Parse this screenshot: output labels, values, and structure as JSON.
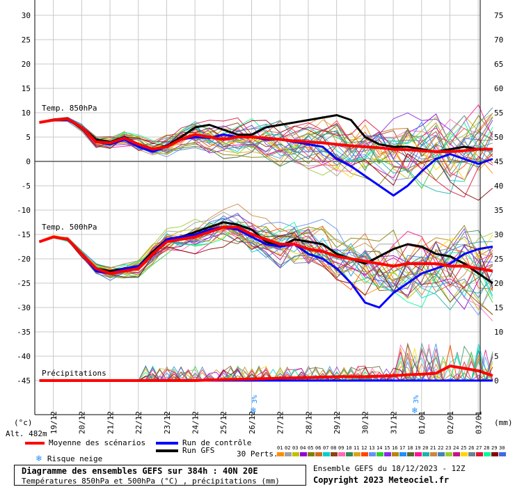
{
  "left_axis": {
    "ticks": [
      "30",
      "25",
      "20",
      "15",
      "10",
      "5",
      "0",
      "-5",
      "-10",
      "-15",
      "-20",
      "-25",
      "-30",
      "-35",
      "-40",
      "-45"
    ],
    "unit": "(°c)"
  },
  "right_axis": {
    "ticks": [
      "75",
      "70",
      "65",
      "60",
      "55",
      "50",
      "45",
      "40",
      "35",
      "30",
      "25",
      "20",
      "15",
      "10",
      "5",
      "0"
    ],
    "unit": "(mm)"
  },
  "altitude": "Alt. 482m",
  "x_dates": [
    "19/12",
    "20/12",
    "21/12",
    "22/12",
    "23/12",
    "24/12",
    "25/12",
    "26/12",
    "27/12",
    "28/12",
    "29/12",
    "30/12",
    "31/12",
    "01/01",
    "02/01",
    "03/01"
  ],
  "section_labels": {
    "t850": "Temp. 850hPa",
    "t500": "Temp. 500hPa",
    "precip": "Précipitations"
  },
  "snow_markers": [
    {
      "day": 7.1,
      "label": "3%"
    },
    {
      "day": 12.8,
      "label": "3%"
    }
  ],
  "colors": {
    "mean": "#ff0000",
    "control": "#0000ff",
    "gfs": "#000000",
    "grid": "#c8c8c8",
    "axis": "#000000"
  },
  "legend": {
    "mean": "Moyenne des scénarios",
    "control": "Run de contrôle",
    "gfs": "Run GFS",
    "snow": "Risque neige",
    "perts_label": "30 Perts.",
    "perts": [
      "01",
      "02",
      "03",
      "04",
      "05",
      "06",
      "07",
      "08",
      "09",
      "10",
      "11",
      "12",
      "13",
      "14",
      "15",
      "16",
      "17",
      "18",
      "19",
      "20",
      "21",
      "22",
      "23",
      "24",
      "25",
      "26",
      "27",
      "28",
      "29",
      "30"
    ],
    "pert_colors": [
      "#ff8c00",
      "#a0a0a0",
      "#c0c000",
      "#9400d3",
      "#808000",
      "#d2691e",
      "#00ced1",
      "#8b4513",
      "#ff69b4",
      "#2e8b57",
      "#daa520",
      "#ff4500",
      "#6495ed",
      "#32cd32",
      "#8a2be2",
      "#b8860b",
      "#1e90ff",
      "#556b2f",
      "#ff1493",
      "#20b2aa",
      "#cd853f",
      "#4682b4",
      "#9acd32",
      "#c71585",
      "#ffd700",
      "#708090",
      "#dc143c",
      "#00fa9a",
      "#8b0000",
      "#4169e1"
    ]
  },
  "footer": {
    "title": "Diagramme des ensembles GEFS sur 384h : 40N 20E",
    "subtitle": "Températures 850hPa et 500hPa (°C) , précipitations (mm)",
    "run_info": "Ensemble GEFS du 18/12/2023 - 12Z",
    "copyright": "Copyright 2023 Meteociel.fr"
  },
  "chart_data": {
    "type": "line",
    "x_unit": "day offset from 19/12",
    "x_labels": [
      "19/12",
      "20/12",
      "21/12",
      "22/12",
      "23/12",
      "24/12",
      "25/12",
      "26/12",
      "27/12",
      "28/12",
      "29/12",
      "30/12",
      "31/12",
      "01/01",
      "02/01",
      "03/01"
    ],
    "left_ylim": [
      -45,
      30
    ],
    "right_ylim": [
      0,
      75
    ],
    "series": [
      {
        "name": "Moyenne des scénarios",
        "group": "t850",
        "x": [
          -0.5,
          0,
          0.5,
          1,
          1.5,
          2,
          2.5,
          3,
          3.5,
          4,
          4.5,
          5,
          5.5,
          6,
          6.5,
          7,
          7.5,
          8,
          8.5,
          9,
          9.5,
          10,
          10.5,
          11,
          11.5,
          12,
          12.5,
          13,
          13.5,
          14,
          14.5,
          15,
          15.5
        ],
        "y": [
          8,
          8.5,
          8.7,
          7,
          4,
          3.8,
          4.8,
          3.5,
          2.5,
          3,
          4.5,
          5.5,
          5,
          4.5,
          5,
          5,
          4.8,
          4.5,
          4.2,
          4,
          3.8,
          3.5,
          3.2,
          3,
          2.8,
          2.5,
          2.4,
          2.2,
          2,
          2,
          2.2,
          2.5,
          2.5
        ]
      },
      {
        "name": "Run de contrôle",
        "group": "t850",
        "x": [
          -0.5,
          0,
          0.5,
          1,
          1.5,
          2,
          2.5,
          3,
          3.5,
          4,
          4.5,
          5,
          5.5,
          6,
          6.5,
          7,
          7.5,
          8,
          8.5,
          9,
          9.5,
          10,
          10.5,
          11,
          11.5,
          12,
          12.5,
          13,
          13.5,
          14,
          14.5,
          15,
          15.5
        ],
        "y": [
          8,
          8.5,
          8.5,
          7,
          4,
          3.5,
          4.5,
          3,
          2,
          3,
          4.5,
          5,
          4.8,
          5.5,
          5,
          5,
          4.5,
          4.5,
          4,
          3.5,
          3,
          0.5,
          -1,
          -3,
          -5,
          -7,
          -5,
          -2,
          0.5,
          1.5,
          0.5,
          -0.5,
          0.5
        ]
      },
      {
        "name": "Run GFS",
        "group": "t850",
        "x": [
          -0.5,
          0,
          0.5,
          1,
          1.5,
          2,
          2.5,
          3,
          3.5,
          4,
          4.5,
          5,
          5.5,
          6,
          6.5,
          7,
          7.5,
          8,
          8.5,
          9,
          9.5,
          10,
          10.5,
          11,
          11.5,
          12,
          12.5,
          13,
          13.5,
          14,
          14.5,
          15,
          15.5
        ],
        "y": [
          8,
          8.6,
          8.8,
          7,
          4.5,
          4,
          5,
          3.5,
          2.5,
          3.2,
          5,
          7,
          7.5,
          6.5,
          5.5,
          5.5,
          7,
          7.5,
          8,
          8.5,
          9,
          9.5,
          8.5,
          5,
          3.5,
          3,
          3,
          2.5,
          2,
          2.5,
          3,
          2.5,
          2.5
        ]
      },
      {
        "name": "Moyenne des scénarios",
        "group": "t500",
        "x": [
          -0.5,
          0,
          0.5,
          1,
          1.5,
          2,
          2.5,
          3,
          3.5,
          4,
          4.5,
          5,
          5.5,
          6,
          6.5,
          7,
          7.5,
          8,
          8.5,
          9,
          9.5,
          10,
          10.5,
          11,
          11.5,
          12,
          12.5,
          13,
          13.5,
          14,
          14.5,
          15,
          15.5
        ],
        "y": [
          -16.5,
          -15.5,
          -16,
          -19,
          -22,
          -23,
          -22.5,
          -22,
          -19,
          -16.5,
          -16,
          -15.5,
          -14.5,
          -13.5,
          -13.5,
          -15,
          -16,
          -17,
          -17,
          -18,
          -18.5,
          -19.5,
          -20,
          -20.5,
          -21,
          -21.5,
          -21,
          -21,
          -21,
          -21.5,
          -21.5,
          -22,
          -22.5
        ]
      },
      {
        "name": "Run de contrôle",
        "group": "t500",
        "x": [
          -0.5,
          0,
          0.5,
          1,
          1.5,
          2,
          2.5,
          3,
          3.5,
          4,
          4.5,
          5,
          5.5,
          6,
          6.5,
          7,
          7.5,
          8,
          8.5,
          9,
          9.5,
          10,
          10.5,
          11,
          11.5,
          12,
          12.5,
          13,
          13.5,
          14,
          14.5,
          15,
          15.5
        ],
        "y": [
          -16.5,
          -15.5,
          -16,
          -19,
          -22.5,
          -23,
          -22,
          -21.5,
          -19,
          -16,
          -15.5,
          -15,
          -14,
          -13.5,
          -14,
          -15.5,
          -17,
          -17.5,
          -17,
          -19,
          -20,
          -22,
          -25,
          -29,
          -30,
          -27,
          -25,
          -23,
          -22,
          -21,
          -19,
          -18,
          -17.5
        ]
      },
      {
        "name": "Run GFS",
        "group": "t500",
        "x": [
          -0.5,
          0,
          0.5,
          1,
          1.5,
          2,
          2.5,
          3,
          3.5,
          4,
          4.5,
          5,
          5.5,
          6,
          6.5,
          7,
          7.5,
          8,
          8.5,
          9,
          9.5,
          10,
          10.5,
          11,
          11.5,
          12,
          12.5,
          13,
          13.5,
          14,
          14.5,
          15,
          15.5
        ],
        "y": [
          -16.5,
          -15.5,
          -16,
          -19,
          -22,
          -22.5,
          -22,
          -21.5,
          -18.5,
          -16,
          -15.5,
          -14.5,
          -13.5,
          -12.5,
          -13,
          -14,
          -16.5,
          -17.5,
          -16,
          -16.5,
          -17,
          -19,
          -20,
          -21,
          -19.5,
          -18,
          -17,
          -17.5,
          -19,
          -19.5,
          -21,
          -23,
          -25
        ]
      },
      {
        "name": "Moyenne des scénarios",
        "group": "precip",
        "x": [
          -0.5,
          0,
          1,
          2,
          3,
          4,
          5,
          6,
          7,
          8,
          9,
          10,
          11,
          12,
          12.5,
          13,
          13.5,
          14,
          14.5,
          15,
          15.5
        ],
        "y": [
          0,
          0,
          0,
          0,
          0,
          0,
          0,
          0.2,
          0.3,
          0.5,
          0.6,
          0.8,
          0.8,
          1,
          1.2,
          1.3,
          1.5,
          3,
          2.5,
          2,
          1
        ]
      },
      {
        "name": "Run de contrôle",
        "group": "precip",
        "x": [
          -0.5,
          15.5
        ],
        "y": [
          0,
          0
        ]
      }
    ]
  }
}
